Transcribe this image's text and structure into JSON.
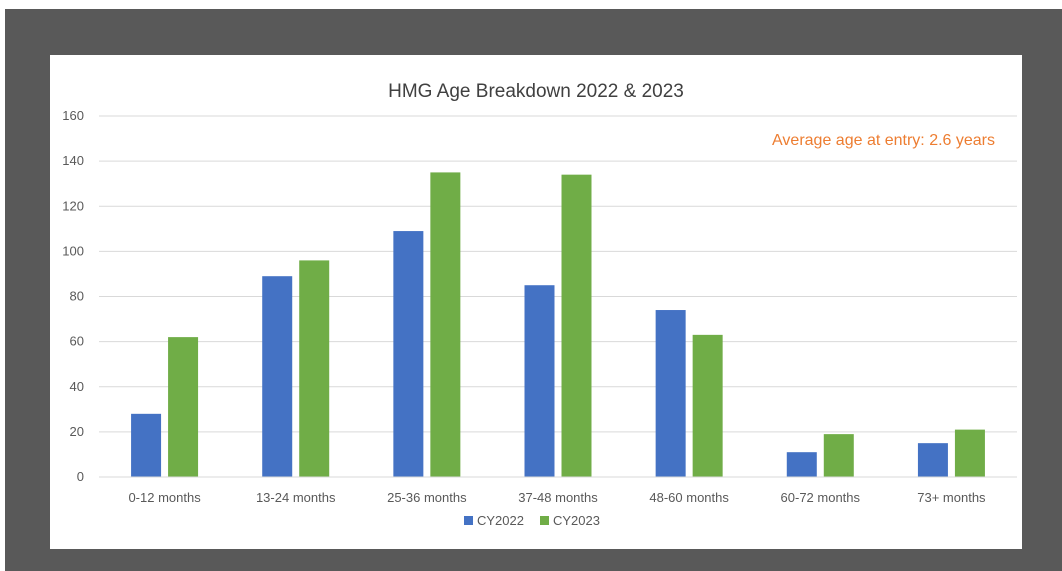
{
  "chart_data": {
    "type": "bar",
    "title": "HMG Age Breakdown 2022 & 2023",
    "annotation": "Average age at entry: 2.6 years",
    "categories": [
      "0-12 months",
      "13-24 months",
      "25-36 months",
      "37-48 months",
      "48-60 months",
      "60-72 months",
      "73+ months"
    ],
    "series": [
      {
        "name": "CY2022",
        "color": "#4472c4",
        "values": [
          28,
          89,
          109,
          85,
          74,
          11,
          15
        ]
      },
      {
        "name": "CY2023",
        "color": "#70ad47",
        "values": [
          62,
          96,
          135,
          134,
          63,
          19,
          21
        ]
      }
    ],
    "ylim": [
      0,
      160
    ],
    "yticks": [
      0,
      20,
      40,
      60,
      80,
      100,
      120,
      140,
      160
    ],
    "grid": true,
    "legend_position": "bottom",
    "annotation_color": "#ed7d31"
  }
}
